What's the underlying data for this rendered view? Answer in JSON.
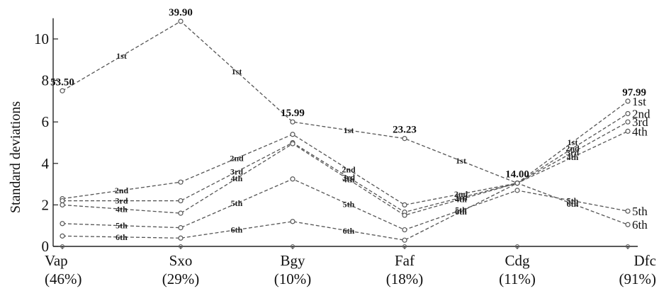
{
  "chart_data": {
    "type": "line",
    "ylabel": "Standard deviations",
    "ylim": [
      0,
      11
    ],
    "yticks": [
      0,
      2,
      4,
      6,
      8,
      10
    ],
    "categories": [
      {
        "name": "Vap",
        "pct": "(46%)"
      },
      {
        "name": "Sxo",
        "pct": "(29%)"
      },
      {
        "name": "Bgy",
        "pct": "(10%)"
      },
      {
        "name": "Faf",
        "pct": "(18%)"
      },
      {
        "name": "Cdg",
        "pct": "(11%)"
      },
      {
        "name": "Dfc",
        "pct": "(91%)"
      }
    ],
    "line_color": "#555555",
    "top_values": [
      "53.50",
      "39.90",
      "15.99",
      "23.23",
      "14.00",
      "97.99"
    ],
    "series": [
      {
        "label": "1st",
        "values": [
          7.5,
          10.85,
          6.0,
          5.2,
          3.05,
          7.0
        ]
      },
      {
        "label": "2nd",
        "values": [
          2.3,
          3.1,
          5.4,
          2.0,
          3.05,
          6.4
        ]
      },
      {
        "label": "3rd",
        "values": [
          2.2,
          2.2,
          5.0,
          1.65,
          3.05,
          6.0
        ]
      },
      {
        "label": "4th",
        "values": [
          2.0,
          1.6,
          4.95,
          1.5,
          3.05,
          5.55
        ]
      },
      {
        "label": "5th",
        "values": [
          1.1,
          0.9,
          3.25,
          0.8,
          2.7,
          1.7
        ]
      },
      {
        "label": "6th",
        "values": [
          0.5,
          0.4,
          1.2,
          0.3,
          3.05,
          1.05
        ]
      }
    ],
    "segment_labels": [
      {
        "series": 0,
        "segment": 0,
        "text": "1st"
      },
      {
        "series": 0,
        "segment": 1,
        "text": "1st"
      },
      {
        "series": 0,
        "segment": 2,
        "text": "1st"
      },
      {
        "series": 0,
        "segment": 3,
        "text": "1st"
      },
      {
        "series": 0,
        "segment": 4,
        "text": "1st"
      },
      {
        "series": 1,
        "segment": 0,
        "text": "2nd"
      },
      {
        "series": 1,
        "segment": 1,
        "text": "2nd"
      },
      {
        "series": 1,
        "segment": 2,
        "text": "2nd"
      },
      {
        "series": 1,
        "segment": 3,
        "text": "2nd"
      },
      {
        "series": 1,
        "segment": 4,
        "text": "2nd"
      },
      {
        "series": 2,
        "segment": 0,
        "text": "3rd"
      },
      {
        "series": 2,
        "segment": 1,
        "text": "3rd"
      },
      {
        "series": 2,
        "segment": 2,
        "text": "3rd"
      },
      {
        "series": 2,
        "segment": 3,
        "text": "3rd"
      },
      {
        "series": 2,
        "segment": 4,
        "text": "3rd"
      },
      {
        "series": 3,
        "segment": 0,
        "text": "4th"
      },
      {
        "series": 3,
        "segment": 1,
        "text": "4th"
      },
      {
        "series": 3,
        "segment": 2,
        "text": "4th"
      },
      {
        "series": 3,
        "segment": 3,
        "text": "4th"
      },
      {
        "series": 3,
        "segment": 4,
        "text": "4th"
      },
      {
        "series": 4,
        "segment": 0,
        "text": "5th"
      },
      {
        "series": 4,
        "segment": 1,
        "text": "5th"
      },
      {
        "series": 4,
        "segment": 2,
        "text": "5th"
      },
      {
        "series": 4,
        "segment": 3,
        "text": "5th"
      },
      {
        "series": 4,
        "segment": 4,
        "text": "5th"
      },
      {
        "series": 5,
        "segment": 0,
        "text": "6th"
      },
      {
        "series": 5,
        "segment": 1,
        "text": "6th"
      },
      {
        "series": 5,
        "segment": 2,
        "text": "6th"
      },
      {
        "series": 5,
        "segment": 3,
        "text": "6th"
      },
      {
        "series": 5,
        "segment": 4,
        "text": "6th"
      }
    ]
  }
}
